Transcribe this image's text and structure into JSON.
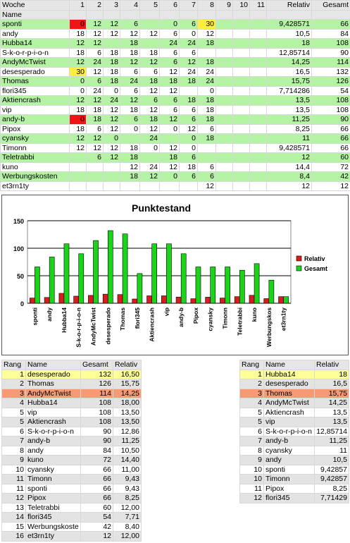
{
  "colors": {
    "light_green_row": "#b4f3a4",
    "red_cell": "#ee1515",
    "yellow_cell": "#ffee3c",
    "gold": "#ffff99",
    "bronze": "#f59a74",
    "relativ_bar": "#d91c1c",
    "gesamt_bar": "#19d419"
  },
  "main_table": {
    "headers": [
      "Woche",
      "1",
      "2",
      "3",
      "4",
      "5",
      "6",
      "7",
      "8",
      "9",
      "10",
      "11",
      "Relativ",
      "Gesamt"
    ],
    "name_label": "Name",
    "rows": [
      {
        "name": "sponti",
        "weeks": [
          "0",
          "12",
          "12",
          "6",
          "",
          "0",
          "6",
          "30",
          "",
          "",
          ""
        ],
        "relativ": "9,428571",
        "gesamt": "66"
      },
      {
        "name": "andy",
        "weeks": [
          "18",
          "12",
          "12",
          "12",
          "12",
          "6",
          "0",
          "12",
          "",
          "",
          ""
        ],
        "relativ": "10,5",
        "gesamt": "84"
      },
      {
        "name": "Hubba14",
        "weeks": [
          "12",
          "12",
          "",
          "18",
          "",
          "24",
          "24",
          "18",
          "",
          "",
          ""
        ],
        "relativ": "18",
        "gesamt": "108"
      },
      {
        "name": "S-k-o-r-p-i-o-n",
        "weeks": [
          "18",
          "6",
          "18",
          "18",
          "18",
          "6",
          "6",
          "",
          "",
          "",
          ""
        ],
        "relativ": "12,85714",
        "gesamt": "90"
      },
      {
        "name": "AndyMcTwist",
        "weeks": [
          "12",
          "24",
          "18",
          "12",
          "12",
          "6",
          "12",
          "18",
          "",
          "",
          ""
        ],
        "relativ": "14,25",
        "gesamt": "114"
      },
      {
        "name": "desesperado",
        "weeks": [
          "30",
          "12",
          "18",
          "6",
          "6",
          "12",
          "24",
          "24",
          "",
          "",
          ""
        ],
        "relativ": "16,5",
        "gesamt": "132"
      },
      {
        "name": "Thomas",
        "weeks": [
          "0",
          "6",
          "18",
          "24",
          "18",
          "18",
          "18",
          "24",
          "",
          "",
          ""
        ],
        "relativ": "15,75",
        "gesamt": "126"
      },
      {
        "name": "flori345",
        "weeks": [
          "0",
          "24",
          "0",
          "6",
          "12",
          "12",
          "",
          "0",
          "",
          "",
          ""
        ],
        "relativ": "7,714286",
        "gesamt": "54"
      },
      {
        "name": "Aktiencrash",
        "weeks": [
          "12",
          "12",
          "24",
          "12",
          "6",
          "6",
          "18",
          "18",
          "",
          "",
          ""
        ],
        "relativ": "13,5",
        "gesamt": "108"
      },
      {
        "name": "vip",
        "weeks": [
          "18",
          "18",
          "12",
          "18",
          "12",
          "6",
          "6",
          "18",
          "",
          "",
          ""
        ],
        "relativ": "13,5",
        "gesamt": "108"
      },
      {
        "name": "andy-b",
        "weeks": [
          "0",
          "18",
          "12",
          "6",
          "18",
          "12",
          "6",
          "18",
          "",
          "",
          ""
        ],
        "relativ": "11,25",
        "gesamt": "90"
      },
      {
        "name": "Pipox",
        "weeks": [
          "18",
          "6",
          "12",
          "0",
          "12",
          "0",
          "12",
          "6",
          "",
          "",
          ""
        ],
        "relativ": "8,25",
        "gesamt": "66"
      },
      {
        "name": "cyansky",
        "weeks": [
          "12",
          "12",
          "0",
          "",
          "24",
          "",
          "0",
          "18",
          "",
          "",
          ""
        ],
        "relativ": "11",
        "gesamt": "66"
      },
      {
        "name": "Timonn",
        "weeks": [
          "12",
          "12",
          "12",
          "18",
          "0",
          "12",
          "0",
          "",
          "",
          "",
          ""
        ],
        "relativ": "9,428571",
        "gesamt": "66"
      },
      {
        "name": "Teletrabbi",
        "weeks": [
          "",
          "6",
          "12",
          "18",
          "",
          "18",
          "6",
          "",
          "",
          "",
          ""
        ],
        "relativ": "12",
        "gesamt": "60"
      },
      {
        "name": "kuno",
        "weeks": [
          "",
          "",
          "",
          "12",
          "24",
          "12",
          "18",
          "6",
          "",
          "",
          ""
        ],
        "relativ": "14,4",
        "gesamt": "72"
      },
      {
        "name": "Werbungskosten",
        "weeks": [
          "",
          "",
          "",
          "18",
          "12",
          "0",
          "6",
          "6",
          "",
          "",
          ""
        ],
        "relativ": "8,4",
        "gesamt": "42"
      },
      {
        "name": "et3rn1ty",
        "weeks": [
          "",
          "",
          "",
          "",
          "",
          "",
          "",
          "12",
          "",
          "",
          ""
        ],
        "relativ": "12",
        "gesamt": "12"
      }
    ]
  },
  "chart_data": {
    "type": "bar",
    "title": "Punktestand",
    "categories": [
      "sponti",
      "andy",
      "Hubba14",
      "S-k-o-r-p-i-o-n",
      "AndyMcTwist",
      "desesperado",
      "Thomas",
      "flori345",
      "Aktiencrash",
      "vip",
      "andy-b",
      "Pipox",
      "cyansky",
      "Timonn",
      "Teletrabbi",
      "kuno",
      "Werbungskos",
      "et3rn1ty"
    ],
    "series": [
      {
        "name": "Relativ",
        "values": [
          9.43,
          10.5,
          18,
          12.86,
          14.25,
          16.5,
          15.75,
          7.71,
          13.5,
          13.5,
          11.25,
          8.25,
          11,
          9.43,
          12,
          14.4,
          8.4,
          12
        ]
      },
      {
        "name": "Gesamt",
        "values": [
          66,
          84,
          108,
          90,
          114,
          132,
          126,
          54,
          108,
          108,
          90,
          66,
          66,
          66,
          60,
          72,
          42,
          12
        ]
      }
    ],
    "yticks": [
      "0",
      "50",
      "100",
      "150"
    ],
    "ylim": [
      0,
      150
    ],
    "grid": true,
    "legend": "right"
  },
  "rank_left": {
    "headers": [
      "Rang",
      "Name",
      "Gesamt",
      "Relativ"
    ],
    "rows": [
      {
        "rang": "1",
        "name": "desesperado",
        "gesamt": "132",
        "relativ": "16,50"
      },
      {
        "rang": "2",
        "name": "Thomas",
        "gesamt": "126",
        "relativ": "15,75"
      },
      {
        "rang": "3",
        "name": "AndyMcTwist",
        "gesamt": "114",
        "relativ": "14,25"
      },
      {
        "rang": "4",
        "name": "Hubba14",
        "gesamt": "108",
        "relativ": "18,00"
      },
      {
        "rang": "5",
        "name": "vip",
        "gesamt": "108",
        "relativ": "13,50"
      },
      {
        "rang": "5",
        "name": "Aktiencrash",
        "gesamt": "108",
        "relativ": "13,50"
      },
      {
        "rang": "6",
        "name": "S-k-o-r-p-i-o-n",
        "gesamt": "90",
        "relativ": "12,86"
      },
      {
        "rang": "7",
        "name": "andy-b",
        "gesamt": "90",
        "relativ": "11,25"
      },
      {
        "rang": "8",
        "name": "andy",
        "gesamt": "84",
        "relativ": "10,50"
      },
      {
        "rang": "9",
        "name": "kuno",
        "gesamt": "72",
        "relativ": "14,40"
      },
      {
        "rang": "10",
        "name": "cyansky",
        "gesamt": "66",
        "relativ": "11,00"
      },
      {
        "rang": "11",
        "name": "Timonn",
        "gesamt": "66",
        "relativ": "9,43"
      },
      {
        "rang": "11",
        "name": "sponti",
        "gesamt": "66",
        "relativ": "9,43"
      },
      {
        "rang": "12",
        "name": "Pipox",
        "gesamt": "66",
        "relativ": "8,25"
      },
      {
        "rang": "13",
        "name": "Teletrabbi",
        "gesamt": "60",
        "relativ": "12,00"
      },
      {
        "rang": "14",
        "name": "flori345",
        "gesamt": "54",
        "relativ": "7,71"
      },
      {
        "rang": "15",
        "name": "Werbungskoste",
        "gesamt": "42",
        "relativ": "8,40"
      },
      {
        "rang": "16",
        "name": "et3rn1ty",
        "gesamt": "12",
        "relativ": "12,00"
      }
    ]
  },
  "rank_right": {
    "headers": [
      "Rang",
      "Name",
      "Relativ"
    ],
    "rows": [
      {
        "rang": "1",
        "name": "Hubba14",
        "relativ": "18"
      },
      {
        "rang": "2",
        "name": "desesperado",
        "relativ": "16,5"
      },
      {
        "rang": "3",
        "name": "Thomas",
        "relativ": "15,75"
      },
      {
        "rang": "4",
        "name": "AndyMcTwist",
        "relativ": "14,25"
      },
      {
        "rang": "5",
        "name": "Aktiencrash",
        "relativ": "13,5"
      },
      {
        "rang": "5",
        "name": "vip",
        "relativ": "13,5"
      },
      {
        "rang": "6",
        "name": "S-k-o-r-p-i-o-n",
        "relativ": "12,85714"
      },
      {
        "rang": "7",
        "name": "andy-b",
        "relativ": "11,25"
      },
      {
        "rang": "8",
        "name": "cyansky",
        "relativ": "11"
      },
      {
        "rang": "9",
        "name": "andy",
        "relativ": "10,5"
      },
      {
        "rang": "10",
        "name": "sponti",
        "relativ": "9,42857"
      },
      {
        "rang": "10",
        "name": "Timonn",
        "relativ": "9,42857"
      },
      {
        "rang": "11",
        "name": "Pipox",
        "relativ": "8,25"
      },
      {
        "rang": "12",
        "name": "flori345",
        "relativ": "7,71429"
      }
    ]
  }
}
